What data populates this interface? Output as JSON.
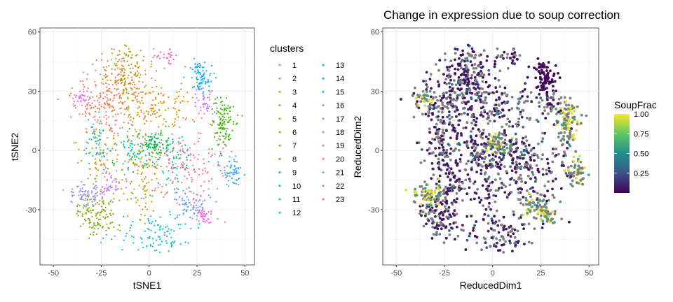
{
  "chart_data": [
    {
      "type": "scatter",
      "title": "",
      "xlabel": "tSNE1",
      "ylabel": "tSNE2",
      "xlim": [
        -57,
        55
      ],
      "ylim": [
        -58,
        62
      ],
      "xticks": [
        -50,
        -25,
        0,
        25,
        50
      ],
      "yticks": [
        -30,
        0,
        30,
        60
      ],
      "xtick_labels": [
        "-50",
        "-25",
        "0",
        "25",
        "50"
      ],
      "ytick_labels": [
        "-30",
        "0",
        "30",
        "60"
      ],
      "grid": true,
      "legend": {
        "title": "clusters",
        "position": "right",
        "columns": 2
      },
      "series": [
        {
          "name": "1",
          "color": "#F8766D",
          "cx": -22,
          "cy": 25,
          "sx": 9,
          "sy": 9,
          "n": 140
        },
        {
          "name": "2",
          "color": "#EC823C",
          "cx": -15,
          "cy": 32,
          "sx": 9,
          "sy": 10,
          "n": 140
        },
        {
          "name": "3",
          "color": "#DE8C00",
          "cx": 5,
          "cy": 20,
          "sx": 10,
          "sy": 8,
          "n": 120
        },
        {
          "name": "4",
          "color": "#CF9400",
          "cx": -25,
          "cy": -5,
          "sx": 6,
          "sy": 14,
          "n": 110
        },
        {
          "name": "5",
          "color": "#BA9E00",
          "cx": -3,
          "cy": -12,
          "sx": 5,
          "sy": 14,
          "n": 120
        },
        {
          "name": "6",
          "color": "#A3A500",
          "cx": -12,
          "cy": 40,
          "sx": 6,
          "sy": 8,
          "n": 90
        },
        {
          "name": "7",
          "color": "#7CAE00",
          "cx": -28,
          "cy": -33,
          "sx": 6,
          "sy": 6,
          "n": 110
        },
        {
          "name": "8",
          "color": "#39B600",
          "cx": 39,
          "cy": 15,
          "sx": 3,
          "sy": 6,
          "n": 110
        },
        {
          "name": "9",
          "color": "#00BB4E",
          "cx": 3,
          "cy": 3,
          "sx": 3,
          "sy": 4,
          "n": 70
        },
        {
          "name": "10",
          "color": "#00BF7D",
          "cx": 12,
          "cy": -5,
          "sx": 5,
          "sy": 7,
          "n": 70
        },
        {
          "name": "11",
          "color": "#00C1A3",
          "cx": -8,
          "cy": 0,
          "sx": 6,
          "sy": 5,
          "n": 60
        },
        {
          "name": "12",
          "color": "#00BFC4",
          "cx": 5,
          "cy": -43,
          "sx": 10,
          "sy": 5,
          "n": 100
        },
        {
          "name": "13",
          "color": "#00BAE0",
          "cx": -28,
          "cy": 5,
          "sx": 3,
          "sy": 6,
          "n": 40
        },
        {
          "name": "14",
          "color": "#00B0F6",
          "cx": 27,
          "cy": 37,
          "sx": 3,
          "sy": 4,
          "n": 80
        },
        {
          "name": "15",
          "color": "#35A2FF",
          "cx": 44,
          "cy": -10,
          "sx": 3,
          "sy": 4,
          "n": 60
        },
        {
          "name": "16",
          "color": "#619CFF",
          "cx": 22,
          "cy": -27,
          "sx": 5,
          "sy": 3,
          "n": 60
        },
        {
          "name": "17",
          "color": "#9590FF",
          "cx": -34,
          "cy": -22,
          "sx": 4,
          "sy": 3,
          "n": 70
        },
        {
          "name": "18",
          "color": "#B983FF",
          "cx": -20,
          "cy": -18,
          "sx": 3,
          "sy": 4,
          "n": 50
        },
        {
          "name": "19",
          "color": "#D575FE",
          "cx": 30,
          "cy": 25,
          "sx": 3,
          "sy": 3,
          "n": 40
        },
        {
          "name": "20",
          "color": "#E76BF3",
          "cx": -35,
          "cy": 27,
          "sx": 3,
          "sy": 2,
          "n": 30
        },
        {
          "name": "21",
          "color": "#F564E3",
          "cx": 28,
          "cy": -33,
          "sx": 3,
          "sy": 2,
          "n": 40
        },
        {
          "name": "22",
          "color": "#FF62BC",
          "cx": 9,
          "cy": 48,
          "sx": 3,
          "sy": 2,
          "n": 30
        },
        {
          "name": "23",
          "color": "#FF6C91",
          "cx": 20,
          "cy": -8,
          "sx": 10,
          "sy": 10,
          "n": 140
        }
      ]
    },
    {
      "type": "scatter",
      "title": "Change in expression due to soup correction",
      "xlabel": "ReducedDim1",
      "ylabel": "ReducedDim2",
      "xlim": [
        -57,
        55
      ],
      "ylim": [
        -58,
        62
      ],
      "xticks": [
        -50,
        -25,
        0,
        25,
        50
      ],
      "yticks": [
        -30,
        0,
        30,
        60
      ],
      "xtick_labels": [
        "-50",
        "-25",
        "0",
        "25",
        "50"
      ],
      "ytick_labels": [
        "-30",
        "0",
        "30",
        "60"
      ],
      "grid": true,
      "color_scale": {
        "title": "SoupFrac",
        "min": 0,
        "max": 1,
        "ticks": [
          0.25,
          0.5,
          0.75,
          1.0
        ],
        "tick_labels": [
          "0.25",
          "0.50",
          "0.75",
          "1.00"
        ],
        "colors": [
          "#440154",
          "#3B528B",
          "#21908C",
          "#5DC863",
          "#FDE725"
        ],
        "na_color": "#7F7F7F",
        "position": "right"
      }
    }
  ]
}
